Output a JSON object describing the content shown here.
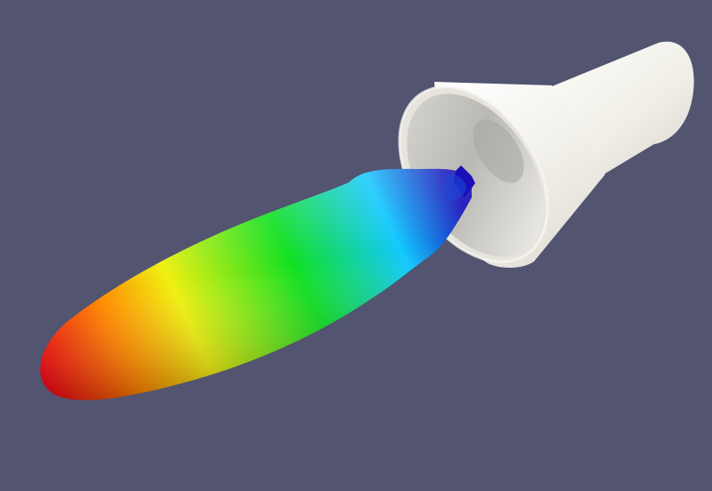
{
  "scene": {
    "background_color": "#525470",
    "nozzle": {
      "outer_color": "#efede6",
      "inner_color": "#b3b2ad",
      "shadow_color": "#a9a8a3"
    },
    "plume": {
      "colormap": [
        "#1a10b8",
        "#12c8ff",
        "#10e020",
        "#f0f010",
        "#ff8800",
        "#e80010"
      ]
    }
  }
}
